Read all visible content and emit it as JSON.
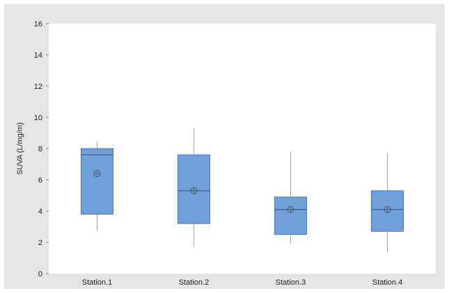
{
  "chart_data": {
    "type": "boxplot",
    "ylabel": "SUVA (L/mg/m)",
    "xlabel": "",
    "ylim": [
      0,
      16
    ],
    "yticks": [
      "0",
      "2",
      "4",
      "6",
      "8",
      "10",
      "12",
      "14",
      "16"
    ],
    "grid": false,
    "categories": [
      "Station.1",
      "Station.2",
      "Station.3",
      "Station.4"
    ],
    "boxes": [
      {
        "category": "Station.1",
        "min": 2.7,
        "q1": 3.8,
        "median": 7.6,
        "q3": 8.0,
        "max": 8.5,
        "mean": 6.4
      },
      {
        "category": "Station.2",
        "min": 1.7,
        "q1": 3.2,
        "median": 5.3,
        "q3": 7.6,
        "max": 9.3,
        "mean": 5.3
      },
      {
        "category": "Station.3",
        "min": 1.9,
        "q1": 2.5,
        "median": 4.1,
        "q3": 4.9,
        "max": 7.8,
        "mean": 4.1
      },
      {
        "category": "Station.4",
        "min": 1.4,
        "q1": 2.7,
        "median": 4.1,
        "q3": 5.3,
        "max": 7.7,
        "mean": 4.1
      }
    ],
    "colors": {
      "box_fill": "#6f9fd8",
      "box_stroke": "#4a78b3",
      "whisker": "#a9a9a9",
      "mean_marker": "#555555",
      "plot_background": "#ffffff",
      "frame_background": "#e5e5e5"
    }
  }
}
